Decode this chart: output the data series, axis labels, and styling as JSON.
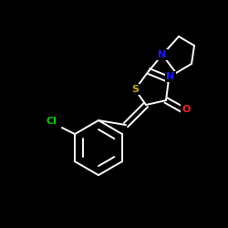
{
  "background_color": "#000000",
  "bond_color": "#ffffff",
  "atom_colors": {
    "N": "#1a1aff",
    "S_thiazole": "#ccaa00",
    "O": "#ff2020",
    "Cl": "#00cc00"
  },
  "figsize": [
    2.5,
    2.5
  ],
  "dpi": 100,
  "xlim": [
    0,
    250
  ],
  "ylim": [
    0,
    250
  ],
  "lw": 1.4
}
